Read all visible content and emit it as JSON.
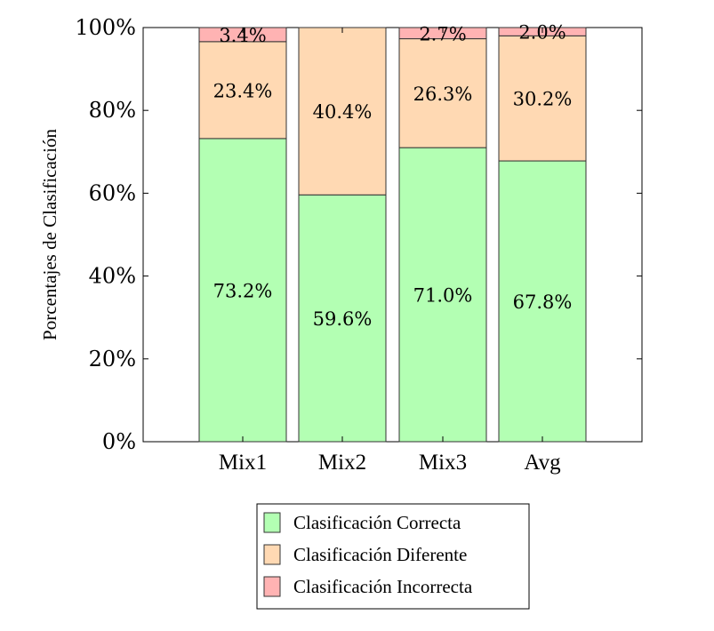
{
  "chart_data": {
    "type": "bar",
    "stacked": true,
    "categories": [
      "Mix1",
      "Mix2",
      "Mix3",
      "Avg"
    ],
    "series": [
      {
        "name": "Clasificación Correcta",
        "values": [
          73.2,
          59.6,
          71.0,
          67.8
        ],
        "color": "#b3ffb3",
        "labels": [
          "73.2%",
          "59.6%",
          "71.0%",
          "67.8%"
        ]
      },
      {
        "name": "Clasificación Diferente",
        "values": [
          23.4,
          40.4,
          26.3,
          30.2
        ],
        "color": "#ffd9b3",
        "labels": [
          "23.4%",
          "40.4%",
          "26.3%",
          "30.2%"
        ]
      },
      {
        "name": "Clasificación Incorrecta",
        "values": [
          3.4,
          0,
          2.7,
          2.0
        ],
        "color": "#ffb3b3",
        "labels": [
          "3.4%",
          "",
          "2.7%",
          "2.0%"
        ]
      }
    ],
    "xlabel": "",
    "ylabel": "Porcentajes de Clasificación",
    "ylim": [
      0,
      100
    ],
    "yticks": [
      0,
      20,
      40,
      60,
      80,
      100
    ],
    "ytick_labels": [
      "0%",
      "20%",
      "40%",
      "60%",
      "80%",
      "100%"
    ],
    "grid": false,
    "legend_position": "bottom"
  }
}
